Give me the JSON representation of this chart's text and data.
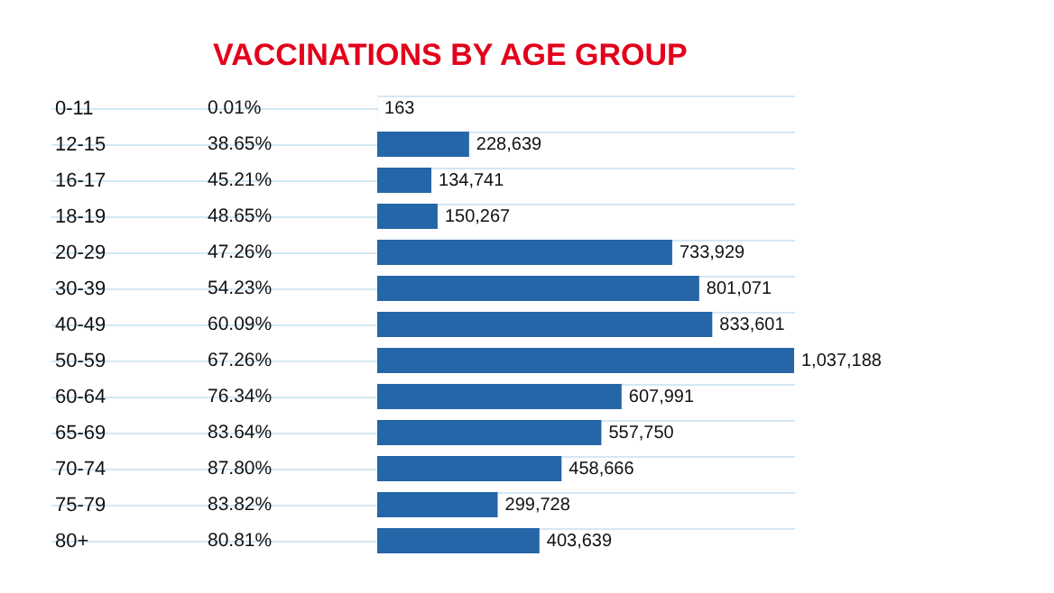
{
  "chart_data": {
    "type": "bar",
    "orientation": "horizontal",
    "title": "VACCINATIONS BY AGE GROUP",
    "categories": [
      "0-11",
      "12-15",
      "16-17",
      "18-19",
      "20-29",
      "30-39",
      "40-49",
      "50-59",
      "60-64",
      "65-69",
      "70-74",
      "75-79",
      "80+"
    ],
    "values": [
      163,
      228639,
      134741,
      150267,
      733929,
      801071,
      833601,
      1037188,
      607991,
      557750,
      458666,
      299728,
      403639
    ],
    "color": "#2566a8",
    "grid": "y",
    "value_labels": [
      "163",
      "228,639",
      "134,741",
      "150,267",
      "733,929",
      "801,071",
      "833,601",
      "1,037,188",
      "607,991",
      "557,750",
      "458,666",
      "299,728",
      "403,639"
    ],
    "annotations": [
      "0.01%",
      "38.65%",
      "45.21%",
      "48.65%",
      "47.26%",
      "54.23%",
      "60.09%",
      "67.26%",
      "76.34%",
      "83.64%",
      "87.80%",
      "83.82%",
      "80.81%"
    ]
  }
}
